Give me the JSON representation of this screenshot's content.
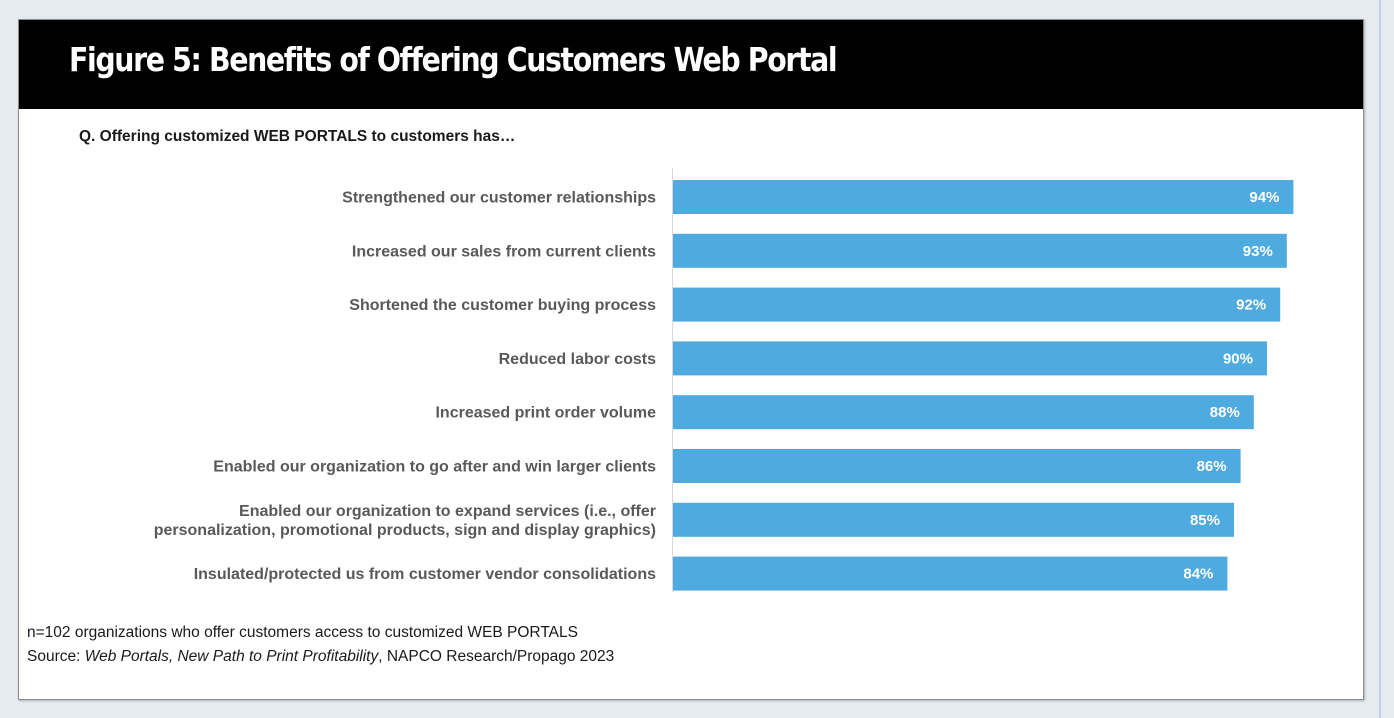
{
  "figure": {
    "title": "Figure  5: Benefits of Offering Customers Web Portal",
    "question_prefix": "Q.",
    "question_text": " Offering customized WEB PORTALS to customers has…",
    "note": "n=102 organizations who offer customers access to customized WEB PORTALS",
    "source_label": "Source: ",
    "source_title": "Web Portals, New Path to Print Profitability",
    "source_rest": ", NAPCO Research/Propago 2023"
  },
  "colors": {
    "bar": "#4faadf",
    "axis": "#d9d9d9",
    "title_bg": "#000000",
    "label": "#595959"
  },
  "chart_data": {
    "type": "bar",
    "orientation": "horizontal",
    "categories": [
      "Strengthened our customer relationships",
      "Increased our sales from current clients",
      "Shortened the customer buying process",
      "Reduced labor costs",
      "Increased print order volume",
      "Enabled our organization to go after and win larger clients",
      "Enabled our organization to expand services (i.e., offer personalization, promotional products, sign and display graphics)",
      "Insulated/protected us from customer vendor consolidations"
    ],
    "category_lines": [
      [
        "Strengthened our customer relationships"
      ],
      [
        "Increased our sales from current clients"
      ],
      [
        "Shortened the customer buying process"
      ],
      [
        "Reduced labor costs"
      ],
      [
        "Increased print order volume"
      ],
      [
        "Enabled our organization to go after and win larger clients"
      ],
      [
        "Enabled our organization to expand services (i.e., offer",
        "personalization, promotional products, sign and display graphics)"
      ],
      [
        "Insulated/protected us from customer vendor consolidations"
      ]
    ],
    "values": [
      94,
      93,
      92,
      90,
      88,
      86,
      85,
      84
    ],
    "value_labels": [
      "94%",
      "93%",
      "92%",
      "90%",
      "88%",
      "86%",
      "85%",
      "84%"
    ],
    "xlim": [
      0,
      100
    ],
    "grid": false,
    "legend": "none"
  }
}
